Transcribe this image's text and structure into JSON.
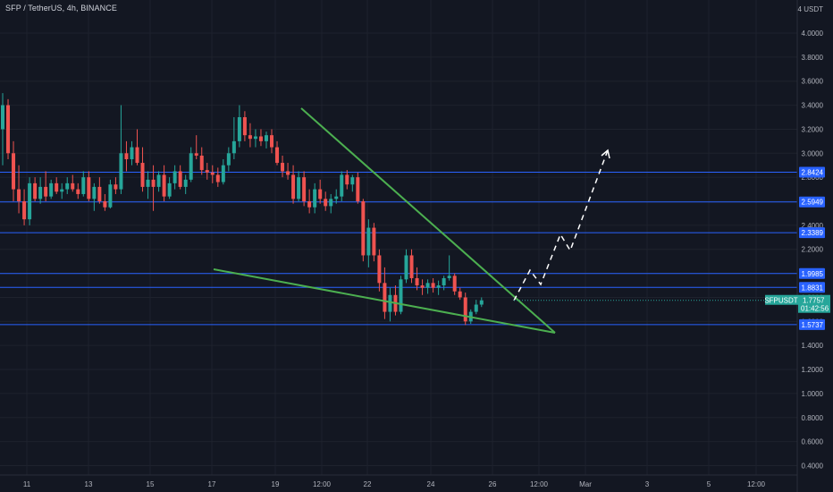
{
  "header": {
    "title": "SFP / TetherUS, 4h, BINANCE"
  },
  "axis": {
    "currency": "USDT",
    "price_ticks": [
      "4.0000",
      "3.8000",
      "3.6000",
      "3.4000",
      "3.2000",
      "3.0000",
      "2.8000",
      "2.6000",
      "2.4000",
      "2.2000",
      "2.0000",
      "1.8000",
      "1.6000",
      "1.4000",
      "1.2000",
      "1.0000",
      "0.8000",
      "0.6000",
      "0.4000"
    ],
    "time_labels": [
      "11",
      "13",
      "15",
      "17",
      "19",
      "12:00",
      "22",
      "24",
      "26",
      "12:00",
      "Mar",
      "3",
      "5",
      "12:00"
    ],
    "top_label": "4 USDT"
  },
  "levels": [
    "2.8424",
    "2.5949",
    "2.3389",
    "1.9985",
    "1.8831",
    "1.5737"
  ],
  "current": {
    "symbol": "SFPUSDT",
    "price": "1.7757",
    "countdown": "01:42:56"
  },
  "colors": {
    "background": "#131722",
    "bull": "#26a69a",
    "bear": "#ef5350",
    "level": "#2962ff",
    "trendline": "#4caf50",
    "projection": "#ffffff",
    "grid": "#1e222d"
  },
  "chart_data": {
    "type": "candlestick",
    "title": "SFP / TetherUS, 4h, BINANCE",
    "ylim": [
      0.3,
      4.15
    ],
    "y_scale": "linear",
    "x_labels": [
      "11",
      "13",
      "15",
      "17",
      "19",
      "12:00",
      "22",
      "24",
      "26",
      "12:00",
      "Mar",
      "3",
      "5",
      "12:00"
    ],
    "horizontal_levels": [
      2.8424,
      2.5949,
      2.3389,
      1.9985,
      1.8831,
      1.5737
    ],
    "current_price": 1.7757,
    "candles": [
      {
        "o": 3.2,
        "h": 3.5,
        "l": 2.9,
        "c": 3.4
      },
      {
        "o": 3.4,
        "h": 3.45,
        "l": 2.95,
        "c": 3.0
      },
      {
        "o": 3.0,
        "h": 3.1,
        "l": 2.6,
        "c": 2.7
      },
      {
        "o": 2.7,
        "h": 2.9,
        "l": 2.5,
        "c": 2.6
      },
      {
        "o": 2.6,
        "h": 2.7,
        "l": 2.4,
        "c": 2.45
      },
      {
        "o": 2.45,
        "h": 2.8,
        "l": 2.4,
        "c": 2.75
      },
      {
        "o": 2.75,
        "h": 2.8,
        "l": 2.6,
        "c": 2.62
      },
      {
        "o": 2.62,
        "h": 2.8,
        "l": 2.58,
        "c": 2.72
      },
      {
        "o": 2.72,
        "h": 2.85,
        "l": 2.6,
        "c": 2.64
      },
      {
        "o": 2.64,
        "h": 2.78,
        "l": 2.62,
        "c": 2.75
      },
      {
        "o": 2.75,
        "h": 2.8,
        "l": 2.66,
        "c": 2.68
      },
      {
        "o": 2.68,
        "h": 2.75,
        "l": 2.62,
        "c": 2.7
      },
      {
        "o": 2.7,
        "h": 2.8,
        "l": 2.66,
        "c": 2.75
      },
      {
        "o": 2.75,
        "h": 2.82,
        "l": 2.68,
        "c": 2.7
      },
      {
        "o": 2.7,
        "h": 2.75,
        "l": 2.62,
        "c": 2.66
      },
      {
        "o": 2.66,
        "h": 2.85,
        "l": 2.64,
        "c": 2.8
      },
      {
        "o": 2.8,
        "h": 2.85,
        "l": 2.6,
        "c": 2.62
      },
      {
        "o": 2.62,
        "h": 2.75,
        "l": 2.52,
        "c": 2.72
      },
      {
        "o": 2.72,
        "h": 2.8,
        "l": 2.58,
        "c": 2.6
      },
      {
        "o": 2.6,
        "h": 2.66,
        "l": 2.52,
        "c": 2.55
      },
      {
        "o": 2.55,
        "h": 2.78,
        "l": 2.54,
        "c": 2.74
      },
      {
        "o": 2.74,
        "h": 2.8,
        "l": 2.66,
        "c": 2.7
      },
      {
        "o": 2.7,
        "h": 3.4,
        "l": 2.66,
        "c": 3.0
      },
      {
        "o": 3.0,
        "h": 3.1,
        "l": 2.85,
        "c": 2.95
      },
      {
        "o": 2.95,
        "h": 3.1,
        "l": 2.9,
        "c": 3.05
      },
      {
        "o": 3.05,
        "h": 3.2,
        "l": 2.9,
        "c": 2.92
      },
      {
        "o": 2.92,
        "h": 3.05,
        "l": 2.68,
        "c": 2.72
      },
      {
        "o": 2.72,
        "h": 2.85,
        "l": 2.62,
        "c": 2.78
      },
      {
        "o": 2.78,
        "h": 2.9,
        "l": 2.52,
        "c": 2.72
      },
      {
        "o": 2.72,
        "h": 2.85,
        "l": 2.68,
        "c": 2.82
      },
      {
        "o": 2.82,
        "h": 2.9,
        "l": 2.6,
        "c": 2.64
      },
      {
        "o": 2.64,
        "h": 2.8,
        "l": 2.62,
        "c": 2.75
      },
      {
        "o": 2.75,
        "h": 2.9,
        "l": 2.7,
        "c": 2.85
      },
      {
        "o": 2.85,
        "h": 2.9,
        "l": 2.7,
        "c": 2.72
      },
      {
        "o": 2.72,
        "h": 2.82,
        "l": 2.66,
        "c": 2.78
      },
      {
        "o": 2.78,
        "h": 3.05,
        "l": 2.76,
        "c": 3.0
      },
      {
        "o": 3.0,
        "h": 3.15,
        "l": 2.95,
        "c": 2.98
      },
      {
        "o": 2.98,
        "h": 3.05,
        "l": 2.82,
        "c": 2.86
      },
      {
        "o": 2.86,
        "h": 2.92,
        "l": 2.78,
        "c": 2.84
      },
      {
        "o": 2.84,
        "h": 2.9,
        "l": 2.75,
        "c": 2.82
      },
      {
        "o": 2.82,
        "h": 2.88,
        "l": 2.72,
        "c": 2.76
      },
      {
        "o": 2.76,
        "h": 2.95,
        "l": 2.74,
        "c": 2.9
      },
      {
        "o": 2.9,
        "h": 3.05,
        "l": 2.85,
        "c": 3.0
      },
      {
        "o": 3.0,
        "h": 3.3,
        "l": 2.95,
        "c": 3.1
      },
      {
        "o": 3.1,
        "h": 3.4,
        "l": 3.05,
        "c": 3.3
      },
      {
        "o": 3.3,
        "h": 3.35,
        "l": 3.1,
        "c": 3.15
      },
      {
        "o": 3.15,
        "h": 3.25,
        "l": 3.05,
        "c": 3.12
      },
      {
        "o": 3.12,
        "h": 3.2,
        "l": 3.05,
        "c": 3.14
      },
      {
        "o": 3.14,
        "h": 3.2,
        "l": 3.06,
        "c": 3.1
      },
      {
        "o": 3.1,
        "h": 3.18,
        "l": 3.04,
        "c": 3.15
      },
      {
        "o": 3.15,
        "h": 3.2,
        "l": 3.0,
        "c": 3.05
      },
      {
        "o": 3.05,
        "h": 3.1,
        "l": 2.9,
        "c": 2.92
      },
      {
        "o": 2.92,
        "h": 2.98,
        "l": 2.8,
        "c": 2.85
      },
      {
        "o": 2.85,
        "h": 2.92,
        "l": 2.78,
        "c": 2.82
      },
      {
        "o": 2.82,
        "h": 2.9,
        "l": 2.58,
        "c": 2.62
      },
      {
        "o": 2.62,
        "h": 2.85,
        "l": 2.6,
        "c": 2.8
      },
      {
        "o": 2.8,
        "h": 2.85,
        "l": 2.56,
        "c": 2.6
      },
      {
        "o": 2.6,
        "h": 2.7,
        "l": 2.5,
        "c": 2.55
      },
      {
        "o": 2.55,
        "h": 2.75,
        "l": 2.5,
        "c": 2.7
      },
      {
        "o": 2.7,
        "h": 2.78,
        "l": 2.58,
        "c": 2.62
      },
      {
        "o": 2.62,
        "h": 2.68,
        "l": 2.52,
        "c": 2.56
      },
      {
        "o": 2.56,
        "h": 2.66,
        "l": 2.5,
        "c": 2.62
      },
      {
        "o": 2.62,
        "h": 2.7,
        "l": 2.58,
        "c": 2.64
      },
      {
        "o": 2.64,
        "h": 2.85,
        "l": 2.6,
        "c": 2.82
      },
      {
        "o": 2.82,
        "h": 2.86,
        "l": 2.7,
        "c": 2.74
      },
      {
        "o": 2.74,
        "h": 2.82,
        "l": 2.68,
        "c": 2.8
      },
      {
        "o": 2.8,
        "h": 2.84,
        "l": 2.58,
        "c": 2.6
      },
      {
        "o": 2.6,
        "h": 2.62,
        "l": 2.1,
        "c": 2.15
      },
      {
        "o": 2.15,
        "h": 2.45,
        "l": 2.05,
        "c": 2.38
      },
      {
        "o": 2.38,
        "h": 2.42,
        "l": 2.1,
        "c": 2.15
      },
      {
        "o": 2.15,
        "h": 2.2,
        "l": 1.85,
        "c": 1.92
      },
      {
        "o": 1.92,
        "h": 2.05,
        "l": 1.62,
        "c": 1.68
      },
      {
        "o": 1.68,
        "h": 1.88,
        "l": 1.6,
        "c": 1.82
      },
      {
        "o": 1.82,
        "h": 1.9,
        "l": 1.65,
        "c": 1.68
      },
      {
        "o": 1.68,
        "h": 1.98,
        "l": 1.66,
        "c": 1.95
      },
      {
        "o": 1.95,
        "h": 2.2,
        "l": 1.92,
        "c": 2.15
      },
      {
        "o": 2.15,
        "h": 2.2,
        "l": 1.92,
        "c": 1.96
      },
      {
        "o": 1.96,
        "h": 2.05,
        "l": 1.86,
        "c": 1.9
      },
      {
        "o": 1.9,
        "h": 1.95,
        "l": 1.82,
        "c": 1.88
      },
      {
        "o": 1.88,
        "h": 1.95,
        "l": 1.83,
        "c": 1.92
      },
      {
        "o": 1.92,
        "h": 1.96,
        "l": 1.84,
        "c": 1.88
      },
      {
        "o": 1.88,
        "h": 1.94,
        "l": 1.82,
        "c": 1.9
      },
      {
        "o": 1.9,
        "h": 1.98,
        "l": 1.86,
        "c": 1.96
      },
      {
        "o": 1.96,
        "h": 2.15,
        "l": 1.94,
        "c": 1.98
      },
      {
        "o": 1.98,
        "h": 2.0,
        "l": 1.82,
        "c": 1.85
      },
      {
        "o": 1.85,
        "h": 1.88,
        "l": 1.78,
        "c": 1.8
      },
      {
        "o": 1.8,
        "h": 1.84,
        "l": 1.57,
        "c": 1.6
      },
      {
        "o": 1.6,
        "h": 1.7,
        "l": 1.58,
        "c": 1.68
      },
      {
        "o": 1.68,
        "h": 1.78,
        "l": 1.66,
        "c": 1.74
      },
      {
        "o": 1.74,
        "h": 1.8,
        "l": 1.72,
        "c": 1.7757
      }
    ]
  }
}
